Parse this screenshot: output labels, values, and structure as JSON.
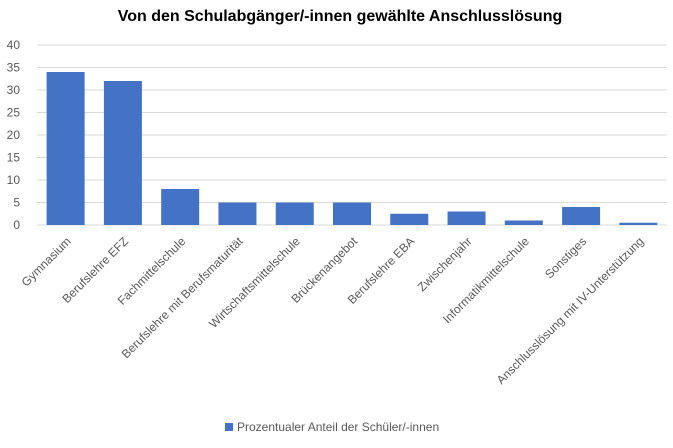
{
  "chart_data": {
    "type": "bar",
    "title": "Von den Schulabgänger/-innen gewählte Anschlusslösung",
    "categories": [
      "Gymnasium",
      "Berufslehre EFZ",
      "Fachmittelschule",
      "Berufslehre mit Berufsmaturität",
      "Wirtschaftsmittelschule",
      "Brückenangebot",
      "Berufslehre EBA",
      "Zwischenjahr",
      "Informatikmittelschule",
      "Sonstiges",
      "Anschlusslösung mit IV-Unterstützung"
    ],
    "series": [
      {
        "name": "Prozentualer Anteil der Schüler/-innen",
        "values": [
          34,
          32,
          8,
          5,
          5,
          5,
          2.5,
          3,
          1,
          4,
          0.5
        ],
        "color": "#4472c4"
      }
    ],
    "xlabel": "",
    "ylabel": "",
    "ylim": [
      0,
      40
    ],
    "yticks": [
      0,
      5,
      10,
      15,
      20,
      25,
      30,
      35,
      40
    ],
    "grid": true,
    "legend": "bottom"
  }
}
